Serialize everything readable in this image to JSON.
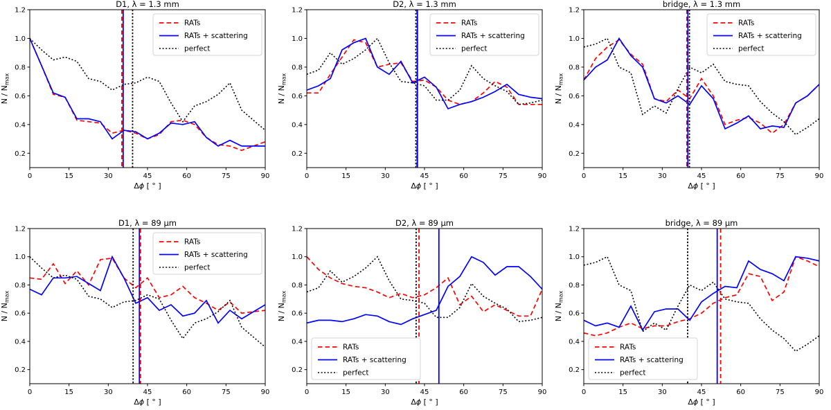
{
  "figure": {
    "background": "#ffffff",
    "xlabel_parts": {
      "delta": "Δ",
      "phi": "ϕ",
      "unit": " [ ° ]"
    },
    "ylabel_main": "N / N",
    "ylabel_sub": "max",
    "xticks": [
      0,
      15,
      30,
      45,
      60,
      75,
      90
    ],
    "ytick_labels": [
      "0.2",
      "0.4",
      "0.6",
      "0.8",
      "1.0",
      "1.2"
    ],
    "ytick_values": [
      0.2,
      0.4,
      0.6,
      0.8,
      1.0,
      1.2
    ],
    "xlim": [
      0,
      90
    ],
    "ylim": [
      0.1,
      1.2
    ]
  },
  "colors": {
    "rats": "#ff0000",
    "scat": "#0000ff",
    "perfect": "#000000",
    "spine": "#000000",
    "legend_border": "#d4d4d4"
  },
  "legend_labels": [
    "RATs",
    "RATs + scattering",
    "perfect"
  ],
  "chart_data": [
    {
      "type": "line",
      "title": "D1, λ = 1.3 mm",
      "legend_pos": "upper right",
      "x": [
        0,
        4.5,
        9,
        13.5,
        18,
        22.5,
        27,
        31.5,
        36,
        40.5,
        45,
        49.5,
        54,
        58.5,
        63,
        67.5,
        72,
        76.5,
        81,
        85.5,
        90
      ],
      "series": [
        {
          "name": "RATs",
          "key": "rats",
          "style": "dashed",
          "values": [
            1.0,
            0.81,
            0.61,
            0.59,
            0.43,
            0.42,
            0.41,
            0.34,
            0.36,
            0.34,
            0.3,
            0.33,
            0.42,
            0.43,
            0.4,
            0.31,
            0.26,
            0.25,
            0.22,
            0.25,
            0.28
          ]
        },
        {
          "name": "RATs + scattering",
          "key": "scat",
          "style": "solid",
          "values": [
            1.0,
            0.81,
            0.62,
            0.59,
            0.44,
            0.44,
            0.42,
            0.3,
            0.36,
            0.35,
            0.3,
            0.34,
            0.41,
            0.4,
            0.42,
            0.31,
            0.25,
            0.29,
            0.25,
            0.25,
            0.25
          ]
        },
        {
          "name": "perfect",
          "key": "perfect",
          "style": "dotted",
          "values": [
            1.0,
            0.92,
            0.85,
            0.87,
            0.84,
            0.72,
            0.7,
            0.64,
            0.68,
            0.69,
            0.73,
            0.7,
            0.55,
            0.42,
            0.53,
            0.56,
            0.61,
            0.69,
            0.5,
            0.43,
            0.36
          ]
        }
      ],
      "vlines": [
        {
          "x": 35.2,
          "key": "rats",
          "style": "dashed"
        },
        {
          "x": 35.7,
          "key": "scat",
          "style": "solid"
        },
        {
          "x": 39.3,
          "key": "perfect",
          "style": "dotted"
        }
      ]
    },
    {
      "type": "line",
      "title": "D2, λ = 1.3 mm",
      "legend_pos": "upper right",
      "x": [
        0,
        4.5,
        9,
        13.5,
        18,
        22.5,
        27,
        31.5,
        36,
        40.5,
        45,
        49.5,
        54,
        58.5,
        63,
        67.5,
        72,
        76.5,
        81,
        85.5,
        90
      ],
      "series": [
        {
          "name": "RATs",
          "key": "rats",
          "style": "dashed",
          "values": [
            0.62,
            0.62,
            0.75,
            0.87,
            0.99,
            0.97,
            0.8,
            0.82,
            0.83,
            0.7,
            0.71,
            0.66,
            0.57,
            0.54,
            0.56,
            0.62,
            0.7,
            0.66,
            0.54,
            0.54,
            0.54
          ]
        },
        {
          "name": "RATs + scattering",
          "key": "scat",
          "style": "solid",
          "values": [
            0.64,
            0.67,
            0.72,
            0.92,
            0.97,
            1.0,
            0.8,
            0.75,
            0.84,
            0.69,
            0.73,
            0.66,
            0.51,
            0.54,
            0.56,
            0.59,
            0.63,
            0.68,
            0.61,
            0.59,
            0.58
          ]
        },
        {
          "name": "perfect",
          "key": "perfect",
          "style": "dotted",
          "values": [
            0.75,
            0.78,
            0.9,
            0.82,
            0.86,
            0.92,
            1.0,
            0.83,
            0.7,
            0.69,
            0.67,
            0.57,
            0.57,
            0.64,
            0.81,
            0.72,
            0.67,
            0.63,
            0.54,
            0.55,
            0.57
          ]
        }
      ],
      "vlines": [
        {
          "x": 41.7,
          "key": "perfect",
          "style": "dotted"
        },
        {
          "x": 42.1,
          "key": "rats",
          "style": "dashed"
        },
        {
          "x": 42.3,
          "key": "scat",
          "style": "solid"
        }
      ]
    },
    {
      "type": "line",
      "title": "bridge, λ = 1.3 mm",
      "legend_pos": "upper right",
      "x": [
        0,
        4.5,
        9,
        13.5,
        18,
        22.5,
        27,
        31.5,
        36,
        40.5,
        45,
        49.5,
        54,
        58.5,
        63,
        67.5,
        72,
        76.5,
        81,
        85.5,
        90
      ],
      "series": [
        {
          "name": "RATs",
          "key": "rats",
          "style": "dashed",
          "values": [
            0.71,
            0.86,
            0.94,
            0.99,
            0.89,
            0.82,
            0.58,
            0.56,
            0.64,
            0.58,
            0.72,
            0.6,
            0.4,
            0.43,
            0.45,
            0.41,
            0.34,
            0.4,
            0.55,
            0.6,
            0.68
          ]
        },
        {
          "name": "RATs + scattering",
          "key": "scat",
          "style": "solid",
          "values": [
            0.71,
            0.8,
            0.85,
            1.0,
            0.88,
            0.8,
            0.58,
            0.55,
            0.6,
            0.54,
            0.67,
            0.58,
            0.37,
            0.41,
            0.46,
            0.37,
            0.39,
            0.38,
            0.55,
            0.6,
            0.68
          ]
        },
        {
          "name": "perfect",
          "key": "perfect",
          "style": "dotted",
          "values": [
            0.94,
            0.96,
            1.0,
            0.8,
            0.76,
            0.47,
            0.53,
            0.48,
            0.65,
            0.8,
            0.76,
            0.82,
            0.7,
            0.68,
            0.67,
            0.56,
            0.48,
            0.42,
            0.33,
            0.38,
            0.44
          ]
        }
      ],
      "vlines": [
        {
          "x": 39.4,
          "key": "rats",
          "style": "dashed"
        },
        {
          "x": 39.8,
          "key": "scat",
          "style": "solid"
        },
        {
          "x": 40.4,
          "key": "perfect",
          "style": "dotted"
        }
      ]
    },
    {
      "type": "line",
      "title": "D1, λ = 89 μm",
      "legend_pos": "upper right",
      "x": [
        0,
        4.5,
        9,
        13.5,
        18,
        22.5,
        27,
        31.5,
        36,
        40.5,
        45,
        49.5,
        54,
        58.5,
        63,
        67.5,
        72,
        76.5,
        81,
        85.5,
        90
      ],
      "series": [
        {
          "name": "RATs",
          "key": "rats",
          "style": "dashed",
          "values": [
            0.85,
            0.84,
            0.95,
            0.81,
            0.9,
            0.8,
            0.98,
            0.99,
            0.85,
            0.78,
            0.85,
            0.71,
            0.73,
            0.79,
            0.71,
            0.67,
            0.62,
            0.68,
            0.6,
            0.61,
            0.62
          ]
        },
        {
          "name": "RATs + scattering",
          "key": "scat",
          "style": "solid",
          "values": [
            0.77,
            0.73,
            0.85,
            0.85,
            0.86,
            0.81,
            0.76,
            1.0,
            0.85,
            0.67,
            0.71,
            0.62,
            0.66,
            0.58,
            0.6,
            0.69,
            0.53,
            0.62,
            0.56,
            0.61,
            0.66
          ]
        },
        {
          "name": "perfect",
          "key": "perfect",
          "style": "dotted",
          "values": [
            1.0,
            0.92,
            0.85,
            0.87,
            0.84,
            0.72,
            0.7,
            0.64,
            0.68,
            0.69,
            0.73,
            0.7,
            0.55,
            0.42,
            0.53,
            0.56,
            0.61,
            0.69,
            0.5,
            0.43,
            0.36
          ]
        }
      ],
      "vlines": [
        {
          "x": 39.5,
          "key": "perfect",
          "style": "dotted"
        },
        {
          "x": 41.9,
          "key": "scat",
          "style": "solid"
        },
        {
          "x": 42.3,
          "key": "rats",
          "style": "dashed"
        }
      ]
    },
    {
      "type": "line",
      "title": "D2, λ = 89 μm",
      "legend_pos": "lower left",
      "x": [
        0,
        4.5,
        9,
        13.5,
        18,
        22.5,
        27,
        31.5,
        36,
        40.5,
        45,
        49.5,
        54,
        58.5,
        63,
        67.5,
        72,
        76.5,
        81,
        85.5,
        90
      ],
      "series": [
        {
          "name": "RATs",
          "key": "rats",
          "style": "dashed",
          "values": [
            1.0,
            0.91,
            0.85,
            0.81,
            0.79,
            0.78,
            0.75,
            0.71,
            0.74,
            0.71,
            0.73,
            0.78,
            0.85,
            0.66,
            0.72,
            0.61,
            0.66,
            0.62,
            0.58,
            0.58,
            0.77
          ]
        },
        {
          "name": "RATs + scattering",
          "key": "scat",
          "style": "solid",
          "values": [
            0.53,
            0.55,
            0.55,
            0.54,
            0.56,
            0.59,
            0.58,
            0.54,
            0.52,
            0.56,
            0.59,
            0.62,
            0.79,
            0.86,
            1.0,
            0.96,
            0.87,
            0.93,
            0.93,
            0.86,
            0.77
          ]
        },
        {
          "name": "perfect",
          "key": "perfect",
          "style": "dotted",
          "values": [
            0.75,
            0.78,
            0.9,
            0.82,
            0.86,
            0.92,
            1.0,
            0.83,
            0.7,
            0.69,
            0.67,
            0.57,
            0.57,
            0.64,
            0.81,
            0.72,
            0.67,
            0.63,
            0.54,
            0.55,
            0.57
          ]
        }
      ],
      "vlines": [
        {
          "x": 41.8,
          "key": "perfect",
          "style": "dotted"
        },
        {
          "x": 42.9,
          "key": "rats",
          "style": "dashed"
        },
        {
          "x": 50.5,
          "key": "scat",
          "style": "solid"
        }
      ]
    },
    {
      "type": "line",
      "title": "bridge, λ = 89 μm",
      "legend_pos": "lower left",
      "x": [
        0,
        4.5,
        9,
        13.5,
        18,
        22.5,
        27,
        31.5,
        36,
        40.5,
        45,
        49.5,
        54,
        58.5,
        63,
        67.5,
        72,
        76.5,
        81,
        85.5,
        90
      ],
      "series": [
        {
          "name": "RATs",
          "key": "rats",
          "style": "dashed",
          "values": [
            0.46,
            0.44,
            0.46,
            0.5,
            0.53,
            0.49,
            0.51,
            0.51,
            0.54,
            0.56,
            0.6,
            0.67,
            0.71,
            0.73,
            0.88,
            0.86,
            0.69,
            0.75,
            1.0,
            0.97,
            0.93
          ]
        },
        {
          "name": "RATs + scattering",
          "key": "scat",
          "style": "solid",
          "values": [
            0.55,
            0.51,
            0.53,
            0.5,
            0.65,
            0.48,
            0.61,
            0.63,
            0.63,
            0.55,
            0.68,
            0.74,
            0.79,
            0.78,
            0.97,
            0.91,
            0.88,
            0.83,
            1.0,
            0.99,
            0.97
          ]
        },
        {
          "name": "perfect",
          "key": "perfect",
          "style": "dotted",
          "values": [
            0.94,
            0.96,
            1.0,
            0.8,
            0.76,
            0.47,
            0.53,
            0.48,
            0.65,
            0.8,
            0.76,
            0.82,
            0.7,
            0.68,
            0.67,
            0.56,
            0.48,
            0.42,
            0.33,
            0.38,
            0.44
          ]
        }
      ],
      "vlines": [
        {
          "x": 39.7,
          "key": "perfect",
          "style": "dotted"
        },
        {
          "x": 51.0,
          "key": "scat",
          "style": "solid"
        },
        {
          "x": 52.3,
          "key": "rats",
          "style": "dashed"
        }
      ]
    }
  ]
}
